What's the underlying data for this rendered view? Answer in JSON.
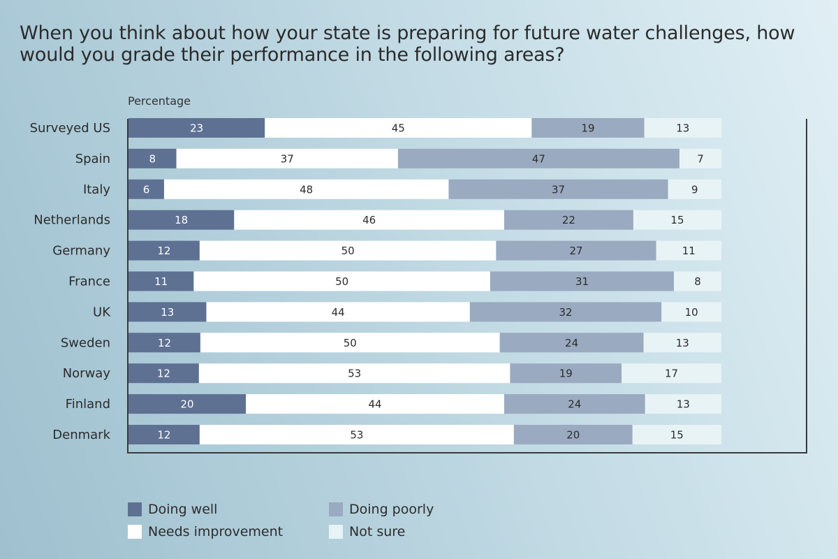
{
  "title": "When you think about how your state is preparing for future water challenges, how would you grade their performance in the following areas?",
  "chart_data": {
    "type": "bar",
    "orientation": "horizontal",
    "stacked": true,
    "title": "When you think about how your state is preparing for future water challenges, how would you grade their performance in the following areas?",
    "xlabel": "Percentage",
    "ylabel": "",
    "categories": [
      "Surveyed US",
      "Spain",
      "Italy",
      "Netherlands",
      "Germany",
      "France",
      "UK",
      "Sweden",
      "Norway",
      "Finland",
      "Denmark"
    ],
    "series": [
      {
        "name": "Doing well",
        "color": "#5e7193",
        "label_color": "#ffffff",
        "values": [
          23,
          8,
          6,
          18,
          12,
          11,
          13,
          12,
          12,
          20,
          12
        ]
      },
      {
        "name": "Needs improvement",
        "color": "#ffffff",
        "label_color": "#2c2c2c",
        "values": [
          45,
          37,
          48,
          46,
          50,
          50,
          44,
          50,
          53,
          44,
          53
        ]
      },
      {
        "name": "Doing poorly",
        "color": "#9aaac0",
        "label_color": "#2c2c2c",
        "values": [
          19,
          47,
          37,
          22,
          27,
          31,
          32,
          24,
          19,
          24,
          20
        ]
      },
      {
        "name": "Not sure",
        "color": "#e8f3f5",
        "label_color": "#2c2c2c",
        "values": [
          13,
          7,
          9,
          15,
          11,
          8,
          10,
          13,
          17,
          13,
          15
        ]
      }
    ],
    "xlim": [
      0,
      100
    ],
    "grid": false,
    "legend_position": "bottom-left"
  }
}
